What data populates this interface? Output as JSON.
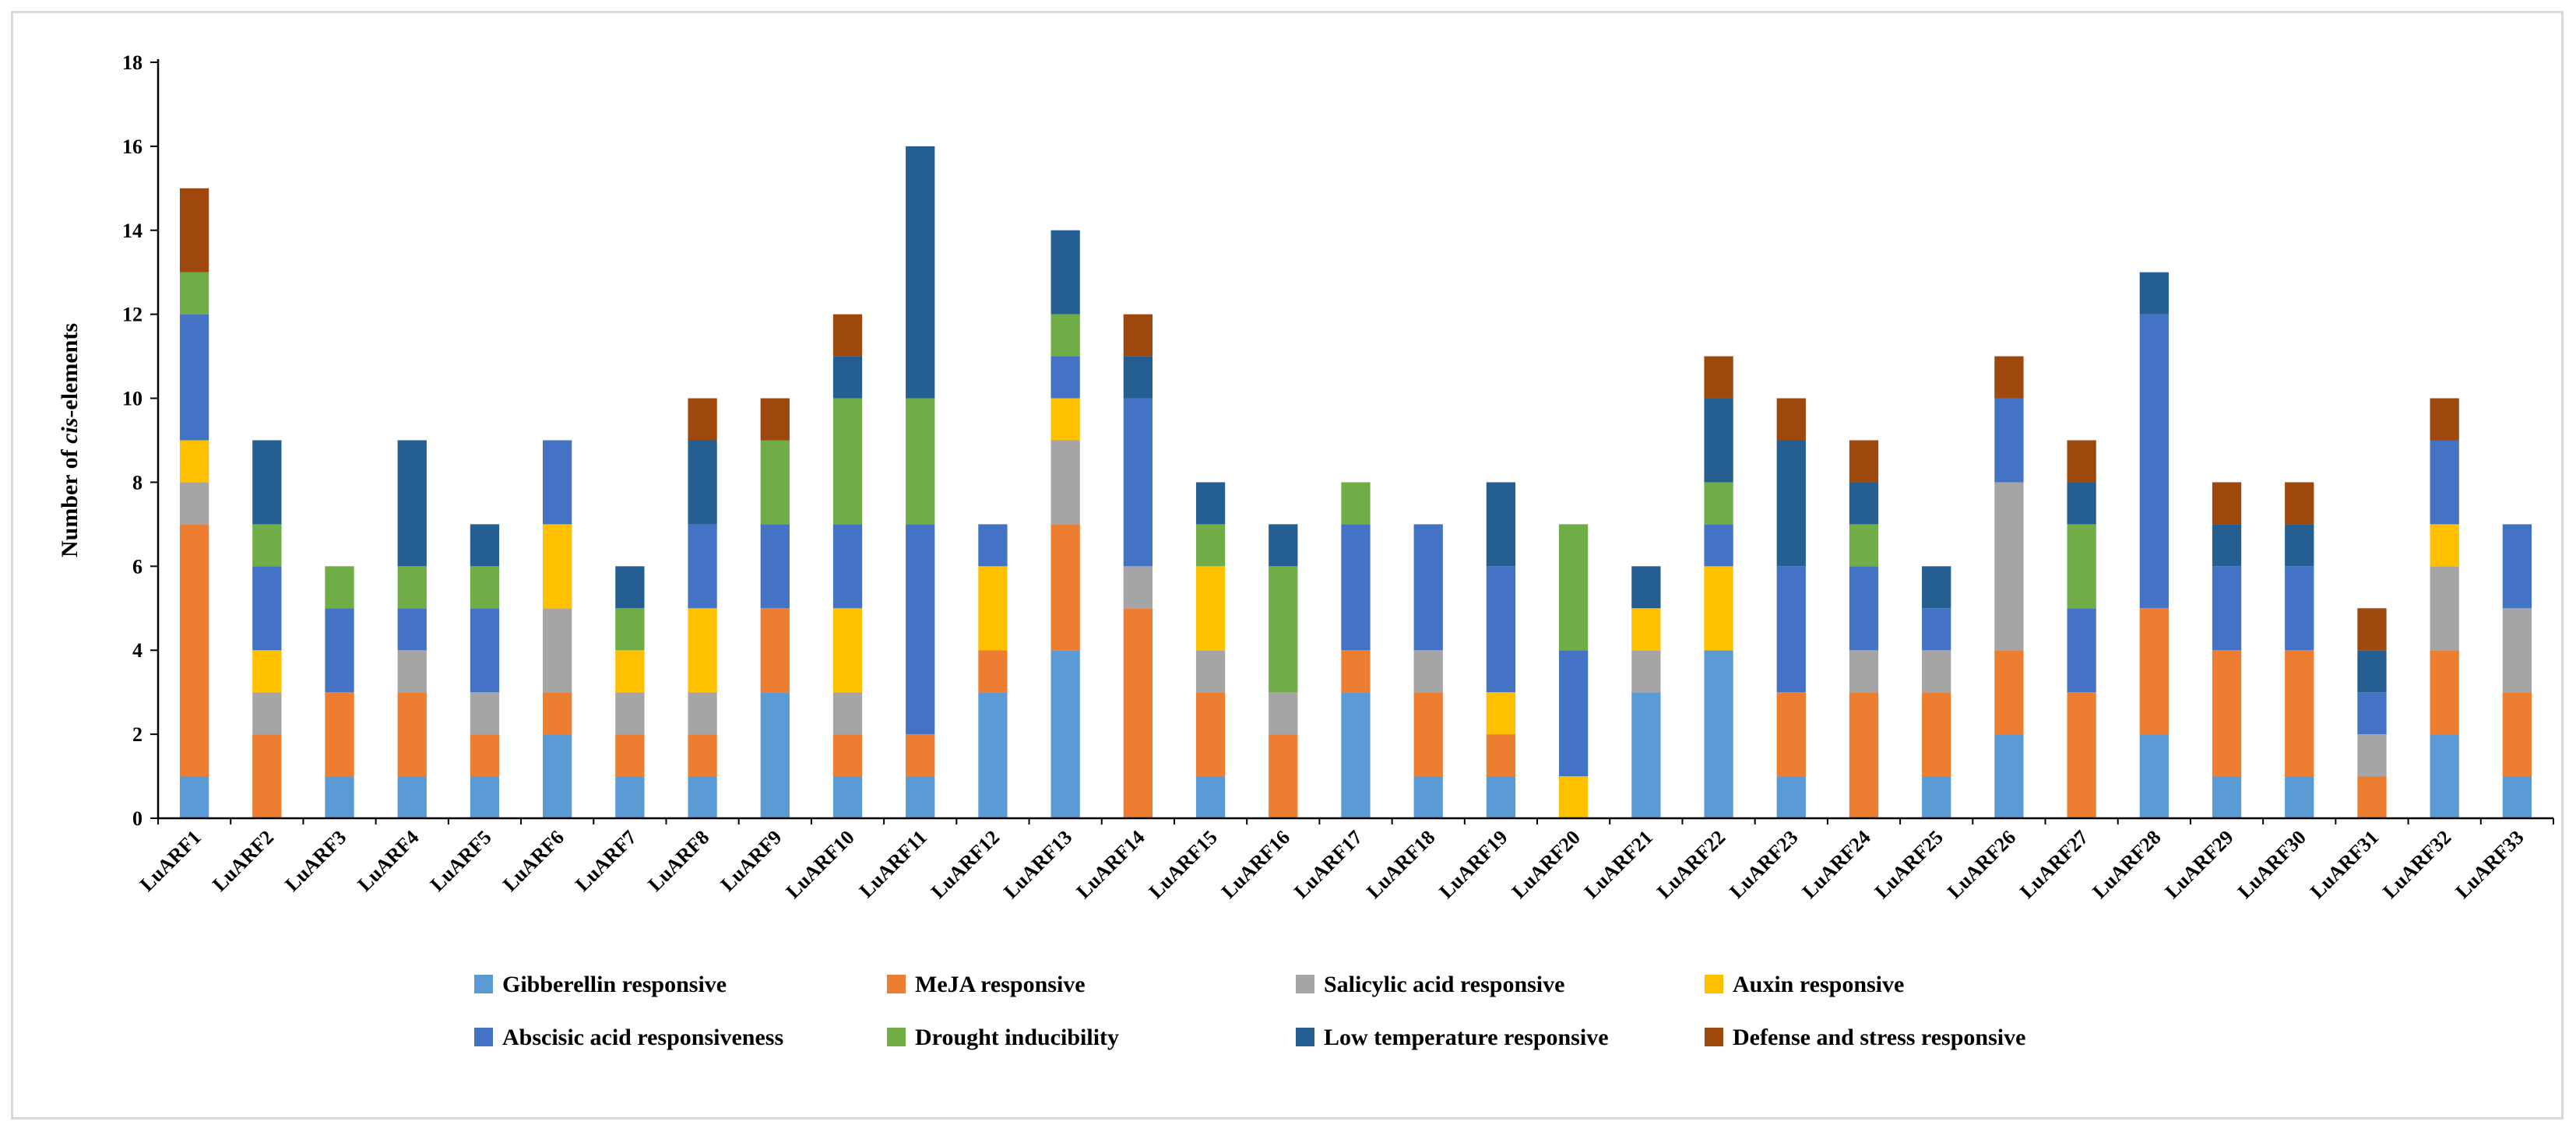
{
  "chart_data": {
    "type": "bar",
    "stacked": true,
    "title": "",
    "xlabel": "",
    "ylabel": {
      "prefix": "Number of ",
      "italic": "cis",
      "suffix": "-elements"
    },
    "ylim": [
      0,
      18
    ],
    "yticks": [
      0,
      2,
      4,
      6,
      8,
      10,
      12,
      14,
      16,
      18
    ],
    "grid": false,
    "legend_position": "bottom",
    "categories": [
      "LuARF1",
      "LuARF2",
      "LuARF3",
      "LuARF4",
      "LuARF5",
      "LuARF6",
      "LuARF7",
      "LuARF8",
      "LuARF9",
      "LuARF10",
      "LuARF11",
      "LuARF12",
      "LuARF13",
      "LuARF14",
      "LuARF15",
      "LuARF16",
      "LuARF17",
      "LuARF18",
      "LuARF19",
      "LuARF20",
      "LuARF21",
      "LuARF22",
      "LuARF23",
      "LuARF24",
      "LuARF25",
      "LuARF26",
      "LuARF27",
      "LuARF28",
      "LuARF29",
      "LuARF30",
      "LuARF31",
      "LuARF32",
      "LuARF33"
    ],
    "series": [
      {
        "name": "Gibberellin responsive",
        "color": "#5b9bd5",
        "values": [
          1,
          0,
          1,
          1,
          1,
          2,
          1,
          1,
          3,
          1,
          1,
          3,
          4,
          0,
          1,
          0,
          3,
          1,
          1,
          0,
          3,
          4,
          1,
          0,
          1,
          2,
          0,
          2,
          1,
          1,
          0,
          2,
          1
        ]
      },
      {
        "name": "MeJA responsive",
        "color": "#ed7d31",
        "values": [
          6,
          2,
          2,
          2,
          1,
          1,
          1,
          1,
          2,
          1,
          1,
          1,
          3,
          5,
          2,
          2,
          1,
          2,
          1,
          0,
          0,
          0,
          2,
          3,
          2,
          2,
          3,
          3,
          3,
          3,
          1,
          2,
          2
        ]
      },
      {
        "name": "Salicylic acid responsive",
        "color": "#a5a5a5",
        "values": [
          1,
          1,
          0,
          1,
          1,
          2,
          1,
          1,
          0,
          1,
          0,
          0,
          2,
          1,
          1,
          1,
          0,
          1,
          0,
          0,
          1,
          0,
          0,
          1,
          1,
          4,
          0,
          0,
          0,
          0,
          1,
          2,
          2
        ]
      },
      {
        "name": "Auxin responsive",
        "color": "#ffc000",
        "values": [
          1,
          1,
          0,
          0,
          0,
          2,
          1,
          2,
          0,
          2,
          0,
          2,
          1,
          0,
          2,
          0,
          0,
          0,
          1,
          1,
          1,
          2,
          0,
          0,
          0,
          0,
          0,
          0,
          0,
          0,
          0,
          1,
          0
        ]
      },
      {
        "name": "Abscisic acid responsiveness",
        "color": "#4472c4",
        "values": [
          3,
          2,
          2,
          1,
          2,
          2,
          0,
          2,
          2,
          2,
          5,
          1,
          1,
          4,
          0,
          0,
          3,
          3,
          3,
          3,
          0,
          1,
          3,
          2,
          1,
          2,
          2,
          7,
          2,
          2,
          1,
          2,
          2
        ]
      },
      {
        "name": "Drought inducibility",
        "color": "#70ad47",
        "values": [
          1,
          1,
          1,
          1,
          1,
          0,
          1,
          0,
          2,
          3,
          3,
          0,
          1,
          0,
          1,
          3,
          1,
          0,
          0,
          3,
          0,
          1,
          0,
          1,
          0,
          0,
          2,
          0,
          0,
          0,
          0,
          0,
          0
        ]
      },
      {
        "name": "Low temperature responsive",
        "color": "#255e91",
        "values": [
          0,
          2,
          0,
          3,
          1,
          0,
          1,
          2,
          0,
          1,
          6,
          0,
          2,
          1,
          1,
          1,
          0,
          0,
          2,
          0,
          1,
          2,
          3,
          1,
          1,
          0,
          1,
          1,
          1,
          1,
          1,
          0,
          0
        ]
      },
      {
        "name": "Defense and stress responsive",
        "color": "#9e480e",
        "values": [
          2,
          0,
          0,
          0,
          0,
          0,
          0,
          1,
          1,
          1,
          0,
          0,
          0,
          1,
          0,
          0,
          0,
          0,
          0,
          0,
          0,
          1,
          1,
          1,
          0,
          1,
          1,
          0,
          1,
          1,
          1,
          1,
          0
        ]
      }
    ]
  }
}
